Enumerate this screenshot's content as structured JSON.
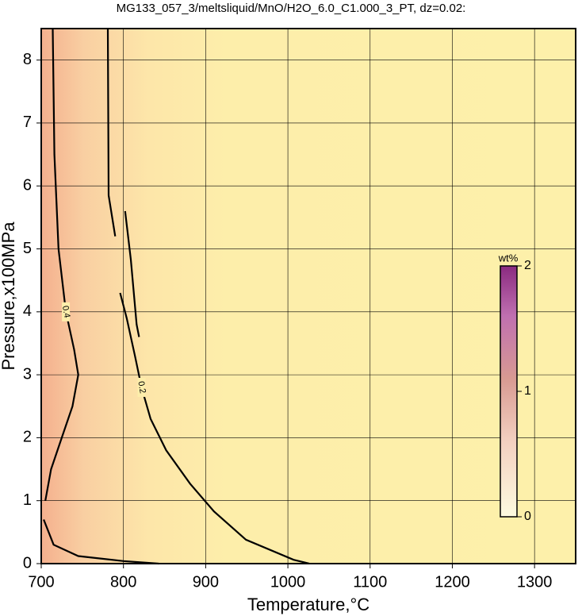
{
  "chart_data": {
    "type": "contour",
    "title": "MG133_057_3/meltsliquid/MnO/H2O_6.0_C1.000_3_PT, dz=0.02:",
    "x_label": "Temperature,°C",
    "y_label": "Pressure,x100MPa",
    "xlim": [
      700,
      1350
    ],
    "ylim": [
      0,
      8.5
    ],
    "xticks": [
      700,
      800,
      900,
      1000,
      1100,
      1200,
      1300
    ],
    "yticks": [
      0,
      1,
      2,
      3,
      4,
      5,
      6,
      7,
      8
    ],
    "grid": true,
    "series": [
      {
        "name": "0.2",
        "color": "#000000",
        "x": [
          781,
          782,
          790,
          null,
          802,
          809,
          816,
          819,
          null,
          796,
          804,
          814,
          822,
          833,
          852,
          881,
          910,
          949,
          1007,
          1026
        ],
        "y": [
          8.5,
          5.85,
          5.2,
          null,
          5.6,
          4.83,
          3.8,
          3.6,
          null,
          4.3,
          3.9,
          3.3,
          2.8,
          2.3,
          1.8,
          1.27,
          0.83,
          0.38,
          0.06,
          0
        ]
      },
      {
        "name": "0.4",
        "color": "#000000",
        "x": [
          714,
          716,
          721,
          730,
          740,
          745,
          738,
          725,
          712,
          705,
          null,
          703,
          715,
          745,
          800,
          843
        ],
        "y": [
          8.5,
          6.5,
          5.0,
          4.0,
          3.4,
          3.0,
          2.5,
          2.0,
          1.5,
          1.0,
          null,
          0.7,
          0.3,
          0.12,
          0.04,
          0
        ]
      }
    ],
    "colorbar": {
      "label": "wt%",
      "lim": [
        0,
        2
      ],
      "ticks": [
        0,
        1,
        2
      ]
    }
  }
}
